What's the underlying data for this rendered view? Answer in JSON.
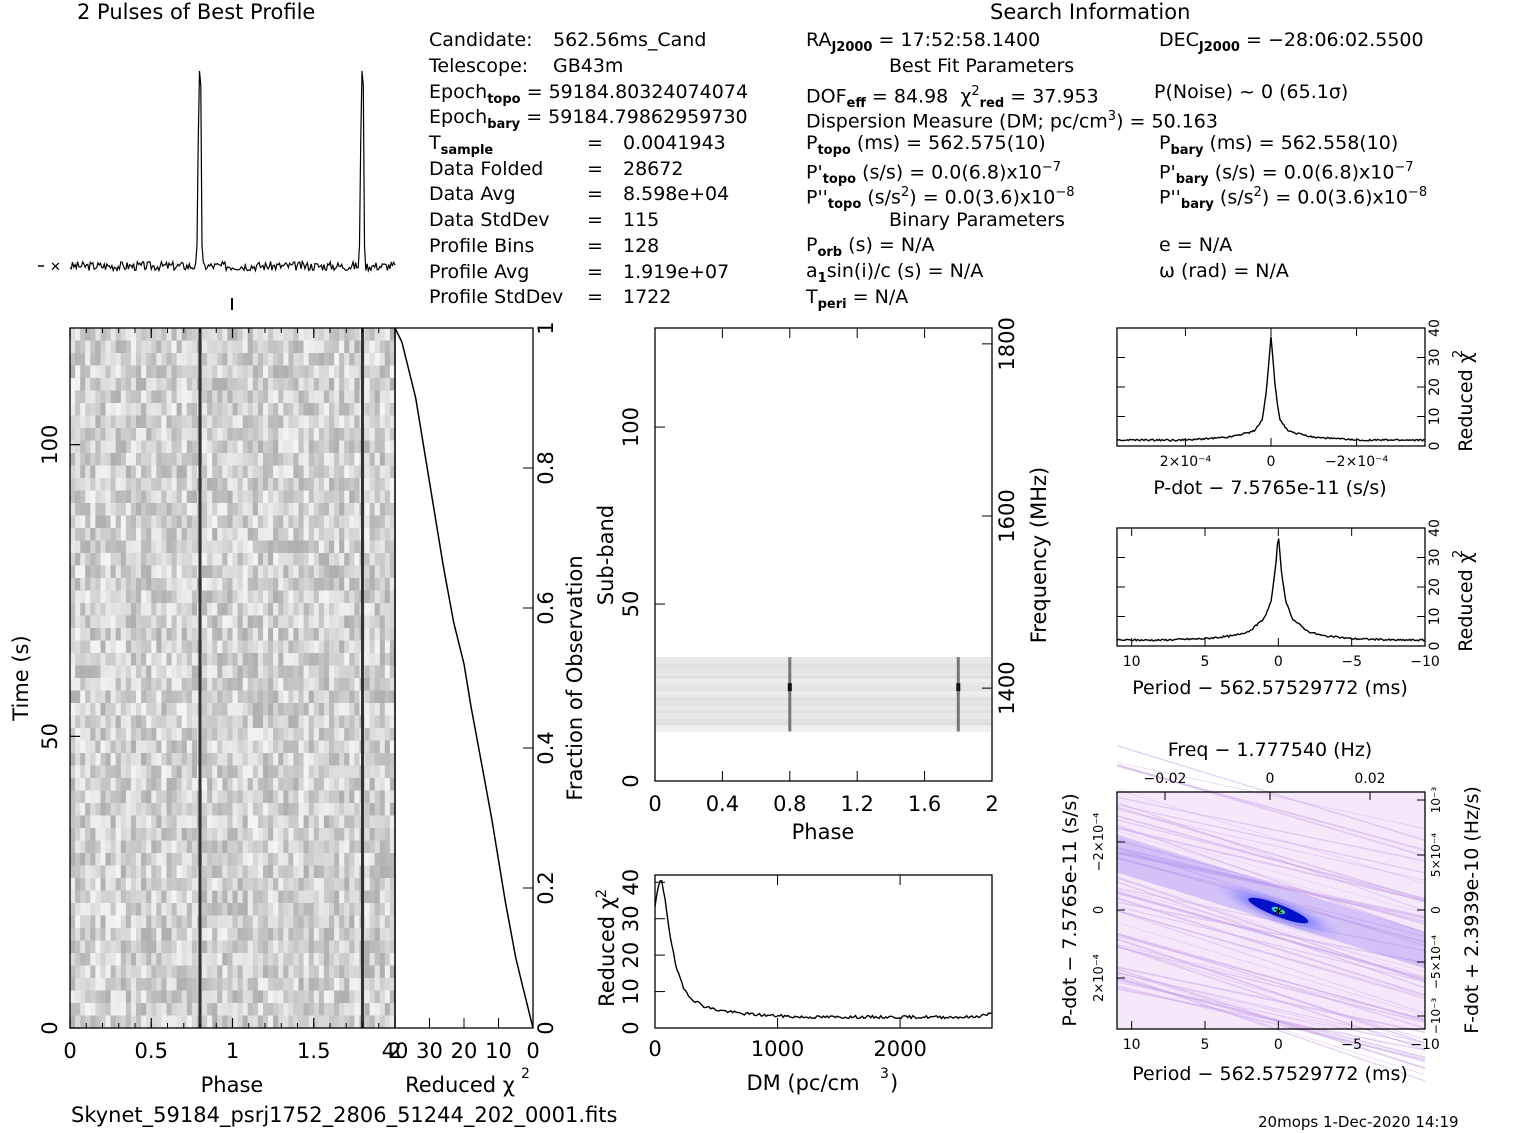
{
  "profile_title": "2 Pulses of Best Profile",
  "search_title": "Search Information",
  "candidate": {
    "label": "Candidate:",
    "value": "562.56ms_Cand",
    "telescope_label": "Telescope:",
    "telescope": "GB43m",
    "epoch_topo": "Epoch",
    "epoch_topo_sub": "topo",
    "epoch_topo_val": "= 59184.80324074074",
    "epoch_bary": "Epoch",
    "epoch_bary_sub": "bary",
    "epoch_bary_val": "= 59184.79862959730"
  },
  "stats": [
    {
      "label": "T",
      "sub": "sample",
      "value": "0.0041943"
    },
    {
      "label": "Data Folded",
      "sub": "",
      "value": "28672"
    },
    {
      "label": "Data Avg",
      "sub": "",
      "value": "8.598e+04"
    },
    {
      "label": "Data StdDev",
      "sub": "",
      "value": "115"
    },
    {
      "label": "Profile Bins",
      "sub": "",
      "value": "128"
    },
    {
      "label": "Profile Avg",
      "sub": "",
      "value": "1.919e+07"
    },
    {
      "label": "Profile StdDev",
      "sub": "",
      "value": "1722"
    }
  ],
  "search": {
    "ra": "RA",
    "ra_sub": "J2000",
    "ra_val": "= 17:52:58.1400",
    "dec": "DEC",
    "dec_sub": "J2000",
    "dec_val": "= −28:06:02.5500",
    "best_fit": "Best Fit Parameters",
    "dof": "DOF",
    "dof_sub": "eff",
    "dof_val": "= 84.98",
    "chi": "χ",
    "chi_sup": "2",
    "chi_sub": "red",
    "chi_val": "= 37.953",
    "pnoise": "P(Noise) ~ 0    (65.1σ)",
    "dm_line": "Dispersion Measure (DM; pc/cm",
    "dm_sup": "3",
    "dm_val": ") = 50.163",
    "ptopo": "P",
    "ptopo_sub": "topo",
    "ptopo_val": "(ms) =  562.575(10)",
    "pbary": "P",
    "pbary_sub": "bary",
    "pbary_val": "(ms) =  562.558(10)",
    "pdtopo": "P'",
    "pdtopo_sub": "topo",
    "pdtopo_val": "(s/s) = 0.0(6.8)x10",
    "pdbary": "P'",
    "pdbary_sub": "bary",
    "pdbary_val": "(s/s) = 0.0(6.8)x10",
    "pd_exp": "−7",
    "pddtopo": "P''",
    "pddtopo_sub": "topo",
    "pddtopo_val": "(s/s",
    "pddbary": "P''",
    "pddbary_sub": "bary",
    "pddbary_val": "(s/s",
    "pdd_sup": "2",
    "pdd_rest": ") = 0.0(3.6)x10",
    "pdd_exp": "−8",
    "binary": "Binary Parameters",
    "porb": "P",
    "porb_sub": "orb",
    "porb_val": "(s) = N/A",
    "ecc": "e = N/A",
    "a1": "a",
    "a1_sub": "1",
    "a1_val": "sin(i)/c (s) = N/A",
    "omega": "ω (rad) = N/A",
    "tperi": "T",
    "tperi_sub": "peri",
    "tperi_val": "= N/A"
  },
  "footer": {
    "filename": "Skynet_59184_psrj1752_2806_51244_202_0001.fits",
    "stamp": "20mops   1-Dec-2020 14:19"
  },
  "chart_data": [
    {
      "type": "line",
      "title": "2 Pulses of Best Profile",
      "xlabel": "",
      "ylabel": "",
      "x": [
        0,
        0.25,
        0.5,
        0.75,
        0.79,
        0.8,
        0.81,
        0.85,
        1.0,
        1.25,
        1.5,
        1.75,
        1.79,
        1.8,
        1.81,
        1.85,
        2.0
      ],
      "values": [
        0.03,
        0.03,
        0.03,
        0.03,
        0.1,
        1.0,
        0.1,
        0.03,
        0.03,
        0.03,
        0.03,
        0.03,
        0.1,
        1.0,
        0.1,
        0.03,
        0.03
      ]
    },
    {
      "type": "heatmap",
      "title": "",
      "xlabel": "Phase",
      "ylabel": "Time (s)",
      "xlim": [
        0,
        2
      ],
      "ylim": [
        0,
        120
      ],
      "x_ticks": [
        "0",
        "0.5",
        "1",
        "1.5",
        "2"
      ],
      "y_ticks": [
        "0",
        "50",
        "100"
      ],
      "pulse_phases": [
        0.8,
        1.8
      ]
    },
    {
      "type": "line",
      "title": "",
      "xlabel": "Reduced χ",
      "xlabel_sup": "2",
      "ylabel": "Fraction of Observation",
      "xlim": [
        40,
        0
      ],
      "ylim": [
        0,
        1
      ],
      "x_ticks": [
        "40",
        "30",
        "20",
        "10",
        "0"
      ],
      "y_ticks": [
        "0",
        "0.2",
        "0.4",
        "0.6",
        "0.8",
        "1"
      ],
      "x": [
        0,
        1,
        2,
        3,
        5,
        8,
        10,
        12,
        15,
        18,
        20,
        23,
        26,
        28,
        30,
        32,
        34,
        36,
        38,
        40
      ],
      "y": [
        0.0,
        0.02,
        0.04,
        0.06,
        0.1,
        0.18,
        0.24,
        0.3,
        0.38,
        0.46,
        0.52,
        0.58,
        0.66,
        0.72,
        0.78,
        0.84,
        0.9,
        0.94,
        0.98,
        1.0
      ]
    },
    {
      "type": "heatmap",
      "title": "",
      "xlabel": "Phase",
      "ylabel": "Sub-band",
      "y2label": "Frequency (MHz)",
      "xlim": [
        0,
        2
      ],
      "ylim": [
        0,
        128
      ],
      "x_ticks": [
        "0",
        "0.4",
        "0.8",
        "1.2",
        "1.6",
        "2"
      ],
      "y_ticks": [
        "0",
        "50",
        "100"
      ],
      "y2_ticks": [
        "1400",
        "1600",
        "1800"
      ],
      "active_band": [
        14,
        35
      ],
      "pulse_phases": [
        0.8,
        1.8
      ]
    },
    {
      "type": "line",
      "title": "",
      "xlabel": "DM (pc/cm",
      "xlabel_sup": "3",
      "xlabel_end": ")",
      "ylabel": "Reduced χ",
      "ylabel_sup": "2",
      "xlim": [
        0,
        2750
      ],
      "ylim": [
        0,
        42
      ],
      "x_ticks": [
        "0",
        "1000",
        "2000"
      ],
      "y_ticks": [
        "0",
        "10",
        "20",
        "30",
        "40"
      ],
      "x": [
        0,
        20,
        50,
        80,
        120,
        170,
        230,
        300,
        400,
        500,
        700,
        900,
        1200,
        1500,
        1800,
        2100,
        2400,
        2600,
        2750
      ],
      "y": [
        33,
        38,
        41,
        36,
        26,
        17,
        11,
        8,
        6,
        5,
        4,
        3.5,
        3,
        3,
        3,
        3,
        3,
        3,
        4
      ]
    },
    {
      "type": "line",
      "title": "",
      "xlabel": "P-dot − 7.5765e-11 (s/s)",
      "ylabel": "Reduced χ",
      "ylabel_sup": "2",
      "xlim": [
        0.00036,
        -0.00036
      ],
      "ylim": [
        0,
        40
      ],
      "x_ticks": [
        "2×10⁻⁴",
        "0",
        "−2×10⁻⁴"
      ],
      "y_ticks": [
        "0",
        "10",
        "20",
        "30",
        "40"
      ],
      "x": [
        0.00036,
        0.0002,
        0.0001,
        4e-05,
        2e-05,
        1e-05,
        0,
        -1e-05,
        -2e-05,
        -4e-05,
        -0.0001,
        -0.0002,
        -0.00036
      ],
      "y": [
        2,
        2,
        3,
        5,
        9,
        20,
        37,
        20,
        9,
        5,
        3,
        2,
        2
      ]
    },
    {
      "type": "line",
      "title": "",
      "xlabel": "Period − 562.57529772 (ms)",
      "ylabel": "Reduced χ",
      "ylabel_sup": "2",
      "xlim": [
        11,
        -10
      ],
      "ylim": [
        0,
        40
      ],
      "x_ticks": [
        "10",
        "5",
        "0",
        "−5",
        "−10"
      ],
      "y_ticks": [
        "0",
        "10",
        "20",
        "30",
        "40"
      ],
      "x": [
        11,
        8,
        5,
        3,
        2,
        1,
        0.5,
        0.2,
        0,
        -0.2,
        -0.5,
        -1,
        -2,
        -3,
        -5,
        -8,
        -10
      ],
      "y": [
        2,
        2,
        2.5,
        3.5,
        5,
        9,
        15,
        26,
        38,
        26,
        15,
        9,
        5,
        3.5,
        2.5,
        2,
        2
      ]
    },
    {
      "type": "heatmap",
      "title": "Freq − 1.777540 (Hz)",
      "xlabel": "Period − 562.57529772 (ms)",
      "ylabel": "P-dot − 7.5765e-11 (s/s)",
      "y2label": "F-dot + 2.3939e-10 (Hz/s)",
      "xlim": [
        11,
        -10
      ],
      "x_ticks": [
        "10",
        "5",
        "0",
        "−5",
        "−10"
      ],
      "x2_ticks": [
        "−0.02",
        "0",
        "0.02"
      ],
      "y_ticks": [
        "−2×10⁻⁴",
        "0",
        "2×10⁻⁴"
      ],
      "y2_ticks": [
        "10⁻³",
        "5×10⁻⁴",
        "0",
        "−5×10⁻⁴",
        "−10⁻³"
      ]
    }
  ]
}
